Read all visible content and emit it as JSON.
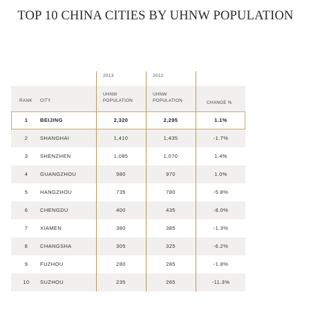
{
  "title": "TOP 10 CHINA CITIES BY UHNW POPULATION",
  "columns": {
    "rank": "RANK",
    "city": "CITY",
    "year_2013": "2013",
    "year_2012": "2012",
    "pop_line1": "UHNW",
    "pop_line2": "POPULATION",
    "change": "CHANGE %"
  },
  "chart_data": {
    "type": "table",
    "title": "TOP 10 CHINA CITIES BY UHNW POPULATION",
    "headers": [
      "RANK",
      "CITY",
      "2013 UHNW POPULATION",
      "2012 UHNW POPULATION",
      "CHANGE %"
    ],
    "rows": [
      {
        "rank": "1",
        "city": "BEIJING",
        "pop_2013": "2,320",
        "pop_2012": "2,295",
        "change": "1.1%"
      },
      {
        "rank": "2",
        "city": "SHANGHAI",
        "pop_2013": "1,410",
        "pop_2012": "1,435",
        "change": "-1.7%"
      },
      {
        "rank": "3",
        "city": "SHENZHEN",
        "pop_2013": "1,085",
        "pop_2012": "1,070",
        "change": "1.4%"
      },
      {
        "rank": "4",
        "city": "GUANGZHOU",
        "pop_2013": "980",
        "pop_2012": "970",
        "change": "1.0%"
      },
      {
        "rank": "5",
        "city": "HANGZHOU",
        "pop_2013": "735",
        "pop_2012": "780",
        "change": "-5.8%"
      },
      {
        "rank": "6",
        "city": "CHENGDU",
        "pop_2013": "400",
        "pop_2012": "435",
        "change": "-8.0%"
      },
      {
        "rank": "7",
        "city": "XIAMEN",
        "pop_2013": "380",
        "pop_2012": "385",
        "change": "-1.3%"
      },
      {
        "rank": "8",
        "city": "CHANGSHA",
        "pop_2013": "305",
        "pop_2012": "325",
        "change": "-6.2%"
      },
      {
        "rank": "9",
        "city": "FUZHOU",
        "pop_2013": "280",
        "pop_2012": "285",
        "change": "-1.8%"
      },
      {
        "rank": "10",
        "city": "SUZHOU",
        "pop_2013": "235",
        "pop_2012": "265",
        "change": "-11.3%"
      }
    ],
    "highlighted_rank": "1"
  },
  "colors": {
    "accent_gold": "#b89a57",
    "header_bg": "#f2f0ee",
    "highlight_border": "#c9a968"
  }
}
